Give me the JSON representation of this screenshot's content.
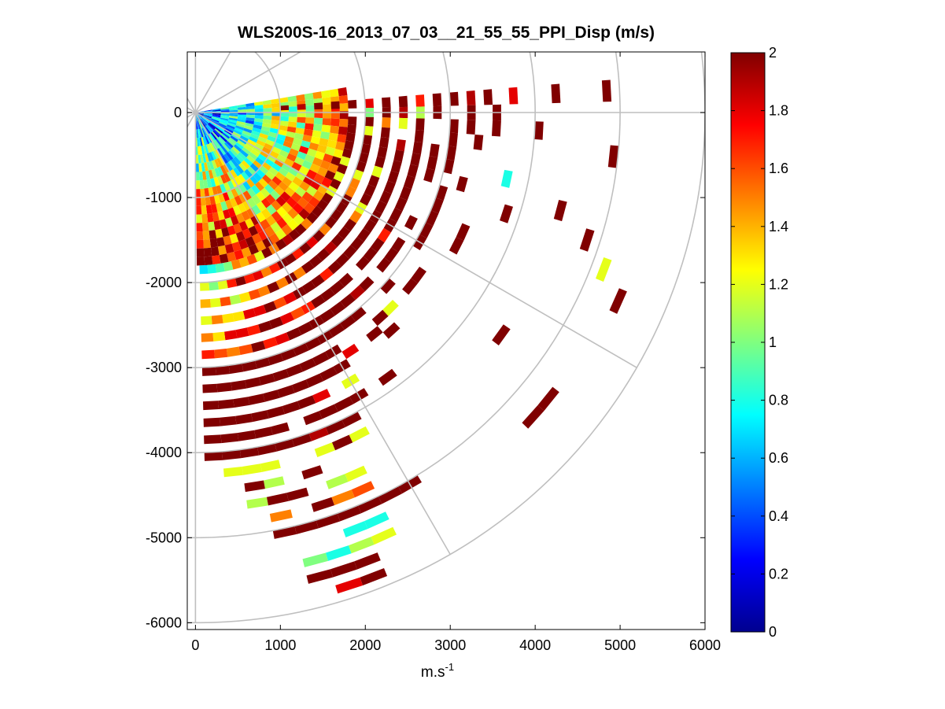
{
  "chart_data": {
    "type": "heatmap",
    "title": "WLS200S-16_2013_07_03__21_55_55_PPI_Disp (m/s)",
    "xlabel": "m.s",
    "xlabel_superscript": "-1",
    "ylabel": "",
    "xlim": [
      -50,
      6000
    ],
    "ylim": [
      -6100,
      650
    ],
    "xticks": [
      0,
      1000,
      2000,
      3000,
      4000,
      5000,
      6000
    ],
    "xtick_labels": [
      "0",
      "1000",
      "2000",
      "3000",
      "4000",
      "5000",
      "6000"
    ],
    "yticks": [
      0,
      -1000,
      -2000,
      -3000,
      -4000,
      -5000,
      -6000
    ],
    "ytick_labels": [
      "0",
      "-1000",
      "-2000",
      "-3000",
      "-4000",
      "-5000",
      "-6000"
    ],
    "polar_grid": {
      "origin": [
        0,
        0
      ],
      "ring_radii": [
        1000,
        2000,
        3000,
        4000,
        5000,
        6000
      ],
      "spoke_angles_deg": [
        0,
        30,
        60,
        90,
        120,
        150
      ]
    },
    "colorbar": {
      "colormap": "jet",
      "min": 0,
      "max": 2,
      "ticks": [
        0,
        0.2,
        0.4,
        0.6,
        0.8,
        1,
        1.2,
        1.4,
        1.6,
        1.8,
        2
      ],
      "tick_labels": [
        "0",
        "0.2",
        "0.4",
        "0.6",
        "0.8",
        "1",
        "1.2",
        "1.4",
        "1.6",
        "1.8",
        "2"
      ]
    },
    "scan": {
      "azimuth_start_deg": 8,
      "azimuth_end_deg": -88,
      "beam_width_deg": 3,
      "gate_length_m": 100
    },
    "cells": [
      [
        3,
        1050,
        2.0
      ],
      [
        3,
        1250,
        1.9
      ],
      [
        3,
        1450,
        2.0
      ],
      [
        3,
        1650,
        2.0
      ],
      [
        3,
        1850,
        2.0
      ],
      [
        3,
        2050,
        1.8
      ],
      [
        3,
        2250,
        2.0
      ],
      [
        3,
        2450,
        2.0
      ],
      [
        3,
        2650,
        1.7
      ],
      [
        3,
        2850,
        2.0
      ],
      [
        3,
        3050,
        2.0
      ],
      [
        3,
        3250,
        1.9
      ],
      [
        3,
        3450,
        2.0
      ],
      [
        3,
        3750,
        1.8
      ],
      [
        3,
        4250,
        2.0
      ],
      [
        3,
        4850,
        2.0
      ],
      [
        0,
        2050,
        1.0
      ],
      [
        0,
        2250,
        2.0
      ],
      [
        0,
        2450,
        1.9
      ],
      [
        0,
        2650,
        1.1
      ],
      [
        0,
        2850,
        2.0
      ],
      [
        0,
        3250,
        2.0
      ],
      [
        0,
        3550,
        2.0
      ],
      [
        -3,
        1850,
        2.0
      ],
      [
        -3,
        2050,
        2.0
      ],
      [
        -3,
        2250,
        1.5
      ],
      [
        -3,
        2450,
        1.2
      ],
      [
        -3,
        2650,
        2.0
      ],
      [
        -3,
        3050,
        2.0
      ],
      [
        -3,
        3250,
        2.0
      ],
      [
        -3,
        3550,
        2.0
      ],
      [
        -3,
        4050,
        2.0
      ],
      [
        -6,
        1850,
        2.0
      ],
      [
        -6,
        2050,
        1.2
      ],
      [
        -6,
        2250,
        2.0
      ],
      [
        -6,
        2650,
        2.0
      ],
      [
        -6,
        3050,
        2.0
      ],
      [
        -6,
        3350,
        2.0
      ],
      [
        -6,
        4950,
        2.0
      ],
      [
        -9,
        1850,
        2.0
      ],
      [
        -9,
        2050,
        2.0
      ],
      [
        -9,
        2250,
        2.0
      ],
      [
        -9,
        2450,
        1.9
      ],
      [
        -9,
        2650,
        2.0
      ],
      [
        -9,
        2850,
        2.0
      ],
      [
        -9,
        3050,
        2.0
      ],
      [
        -12,
        1850,
        2.0
      ],
      [
        -12,
        2050,
        2.0
      ],
      [
        -12,
        2250,
        2.0
      ],
      [
        -12,
        2450,
        2.0
      ],
      [
        -12,
        2650,
        2.0
      ],
      [
        -12,
        2850,
        2.0
      ],
      [
        -12,
        3050,
        2.0
      ],
      [
        -12,
        3750,
        0.8
      ],
      [
        -15,
        1850,
        2.0
      ],
      [
        -15,
        2050,
        2.0
      ],
      [
        -15,
        2250,
        2.0
      ],
      [
        -15,
        2450,
        2.0
      ],
      [
        -15,
        2650,
        2.0
      ],
      [
        -15,
        2850,
        2.0
      ],
      [
        -15,
        3250,
        2.0
      ],
      [
        -15,
        4450,
        2.0
      ],
      [
        -18,
        1850,
        1.2
      ],
      [
        -18,
        2050,
        2.0
      ],
      [
        -18,
        2250,
        1.2
      ],
      [
        -18,
        2450,
        2.0
      ],
      [
        -18,
        2650,
        2.0
      ],
      [
        -18,
        3050,
        2.0
      ],
      [
        -18,
        3850,
        2.0
      ],
      [
        -18,
        4850,
        2.0
      ],
      [
        -21,
        1850,
        2.0
      ],
      [
        -21,
        2050,
        1.2
      ],
      [
        -21,
        2250,
        2.0
      ],
      [
        -21,
        2450,
        2.0
      ],
      [
        -21,
        2650,
        2.0
      ],
      [
        -21,
        3050,
        2.0
      ],
      [
        -21,
        5150,
        1.2
      ],
      [
        -24,
        1850,
        1.2
      ],
      [
        -24,
        2050,
        1.5
      ],
      [
        -24,
        2250,
        2.0
      ],
      [
        -24,
        2450,
        2.0
      ],
      [
        -24,
        2650,
        2.0
      ],
      [
        -24,
        3050,
        2.0
      ],
      [
        -24,
        3450,
        2.0
      ],
      [
        -24,
        5450,
        2.0
      ],
      [
        -27,
        1850,
        2.0
      ],
      [
        -27,
        2050,
        1.5
      ],
      [
        -27,
        2250,
        2.0
      ],
      [
        -27,
        2450,
        2.0
      ],
      [
        -27,
        2650,
        2.0
      ],
      [
        -27,
        2850,
        2.0
      ],
      [
        -27,
        3050,
        2.0
      ],
      [
        -27,
        3450,
        2.0
      ],
      [
        -30,
        1850,
        1.2
      ],
      [
        -30,
        2050,
        2.0
      ],
      [
        -30,
        2250,
        1.2
      ],
      [
        -30,
        2450,
        2.0
      ],
      [
        -30,
        2650,
        2.0
      ],
      [
        -30,
        3050,
        2.0
      ],
      [
        -33,
        1850,
        2.0
      ],
      [
        -33,
        2050,
        2.0
      ],
      [
        -33,
        2250,
        1.5
      ],
      [
        -33,
        2450,
        2.0
      ],
      [
        -33,
        2650,
        1.7
      ],
      [
        -33,
        2850,
        2.0
      ],
      [
        -36,
        1850,
        2.0
      ],
      [
        -36,
        2050,
        2.0
      ],
      [
        -36,
        2250,
        2.0
      ],
      [
        -36,
        2450,
        2.0
      ],
      [
        -36,
        2650,
        2.0
      ],
      [
        -36,
        2850,
        2.0
      ],
      [
        -36,
        3250,
        2.0
      ],
      [
        -36,
        4450,
        2.0
      ],
      [
        -39,
        1850,
        2.0
      ],
      [
        -39,
        2050,
        2.0
      ],
      [
        -39,
        2250,
        2.0
      ],
      [
        -39,
        2450,
        2.0
      ],
      [
        -39,
        2650,
        2.0
      ],
      [
        -39,
        2850,
        2.0
      ],
      [
        -39,
        3250,
        2.0
      ],
      [
        -39,
        5350,
        2.0
      ],
      [
        -42,
        1850,
        2.0
      ],
      [
        -42,
        2050,
        1.5
      ],
      [
        -42,
        2250,
        2.0
      ],
      [
        -42,
        2450,
        2.0
      ],
      [
        -42,
        2650,
        2.0
      ],
      [
        -42,
        3050,
        2.0
      ],
      [
        -42,
        5350,
        2.0
      ],
      [
        -45,
        1850,
        1.5
      ],
      [
        -45,
        2050,
        2.0
      ],
      [
        -45,
        2250,
        1.9
      ],
      [
        -45,
        2450,
        2.0
      ],
      [
        -45,
        2850,
        2.0
      ],
      [
        -45,
        3250,
        1.2
      ],
      [
        -48,
        1850,
        2.0
      ],
      [
        -48,
        2050,
        1.8
      ],
      [
        -48,
        2250,
        2.0
      ],
      [
        -48,
        2450,
        2.0
      ],
      [
        -48,
        2650,
        2.0
      ],
      [
        -48,
        2850,
        1.9
      ],
      [
        -48,
        3250,
        2.0
      ],
      [
        -48,
        3450,
        2.0
      ],
      [
        -51,
        1850,
        2.0
      ],
      [
        -51,
        2050,
        2.0
      ],
      [
        -51,
        2250,
        2.0
      ],
      [
        -51,
        2450,
        1.7
      ],
      [
        -51,
        2650,
        2.0
      ],
      [
        -51,
        2850,
        2.0
      ],
      [
        -51,
        3050,
        2.0
      ],
      [
        -51,
        3350,
        2.0
      ],
      [
        -54,
        1850,
        1.9
      ],
      [
        -54,
        2050,
        1.7
      ],
      [
        -54,
        2250,
        2.0
      ],
      [
        -54,
        2450,
        2.0
      ],
      [
        -54,
        2650,
        2.0
      ],
      [
        -54,
        2850,
        2.0
      ],
      [
        -54,
        3050,
        2.0
      ],
      [
        -54,
        3850,
        2.0
      ],
      [
        -57,
        1850,
        2.0
      ],
      [
        -57,
        2050,
        2.0
      ],
      [
        -57,
        2250,
        1.5
      ],
      [
        -57,
        2450,
        2.0
      ],
      [
        -57,
        2650,
        2.0
      ],
      [
        -57,
        2850,
        2.0
      ],
      [
        -57,
        3050,
        2.0
      ],
      [
        -57,
        3350,
        1.8
      ],
      [
        -60,
        1850,
        1.5
      ],
      [
        -60,
        2050,
        2.0
      ],
      [
        -60,
        2250,
        2.0
      ],
      [
        -60,
        2450,
        2.0
      ],
      [
        -60,
        2650,
        1.7
      ],
      [
        -60,
        2850,
        2.0
      ],
      [
        -60,
        3050,
        2.0
      ],
      [
        -60,
        3250,
        2.0
      ],
      [
        -60,
        3450,
        2.0
      ],
      [
        -60,
        3650,
        1.2
      ],
      [
        -60,
        3850,
        2.0
      ],
      [
        -60,
        5050,
        2.0
      ],
      [
        -63,
        1850,
        2.0
      ],
      [
        -63,
        2050,
        1.7
      ],
      [
        -63,
        2250,
        1.5
      ],
      [
        -63,
        2450,
        1.8
      ],
      [
        -63,
        2650,
        1.6
      ],
      [
        -63,
        2850,
        2.0
      ],
      [
        -63,
        3050,
        2.0
      ],
      [
        -63,
        3250,
        2.0
      ],
      [
        -63,
        3450,
        2.0
      ],
      [
        -63,
        3850,
        2.0
      ],
      [
        -63,
        4050,
        2.0
      ],
      [
        -63,
        4250,
        1.2
      ],
      [
        -63,
        5050,
        2.0
      ],
      [
        -66,
        1850,
        1.2
      ],
      [
        -66,
        2050,
        1.5
      ],
      [
        -66,
        2250,
        2.0
      ],
      [
        -66,
        2450,
        1.6
      ],
      [
        -66,
        2650,
        1.8
      ],
      [
        -66,
        2850,
        2.0
      ],
      [
        -66,
        3050,
        2.0
      ],
      [
        -66,
        3250,
        2.0
      ],
      [
        -66,
        3450,
        2.0
      ],
      [
        -66,
        3650,
        1.8
      ],
      [
        -66,
        3850,
        2.0
      ],
      [
        -66,
        4050,
        2.0
      ],
      [
        -66,
        4250,
        2.0
      ],
      [
        -66,
        4650,
        1.2
      ],
      [
        -66,
        4850,
        1.6
      ],
      [
        -66,
        5050,
        2.0
      ],
      [
        -66,
        5250,
        0.8
      ],
      [
        -66,
        5450,
        1.2
      ],
      [
        -69,
        1850,
        1.6
      ],
      [
        -69,
        2050,
        1.8
      ],
      [
        -69,
        2250,
        1.5
      ],
      [
        -69,
        2450,
        2.0
      ],
      [
        -69,
        2650,
        2.0
      ],
      [
        -69,
        2850,
        1.8
      ],
      [
        -69,
        3050,
        2.0
      ],
      [
        -69,
        3250,
        2.0
      ],
      [
        -69,
        3450,
        2.0
      ],
      [
        -69,
        3650,
        2.0
      ],
      [
        -69,
        3850,
        2.0
      ],
      [
        -69,
        4050,
        1.9
      ],
      [
        -69,
        4250,
        1.2
      ],
      [
        -69,
        4650,
        1.1
      ],
      [
        -69,
        4850,
        1.5
      ],
      [
        -69,
        5050,
        2.0
      ],
      [
        -69,
        5250,
        0.8
      ],
      [
        -69,
        5450,
        1.1
      ],
      [
        -69,
        5650,
        2.0
      ],
      [
        -69,
        5850,
        2.0
      ],
      [
        -72,
        1850,
        1.4
      ],
      [
        -72,
        2050,
        1.7
      ],
      [
        -72,
        2250,
        1.6
      ],
      [
        -72,
        2450,
        1.8
      ],
      [
        -72,
        2650,
        2.0
      ],
      [
        -72,
        2850,
        1.7
      ],
      [
        -72,
        3050,
        2.0
      ],
      [
        -72,
        3250,
        2.0
      ],
      [
        -72,
        3450,
        2.0
      ],
      [
        -72,
        3650,
        2.0
      ],
      [
        -72,
        4050,
        2.0
      ],
      [
        -72,
        4450,
        2.0
      ],
      [
        -72,
        4850,
        2.0
      ],
      [
        -72,
        5050,
        2.0
      ],
      [
        -72,
        5450,
        0.8
      ],
      [
        -72,
        5650,
        2.0
      ],
      [
        -72,
        5850,
        1.8
      ],
      [
        -75,
        1850,
        1.5
      ],
      [
        -75,
        2050,
        2.0
      ],
      [
        -75,
        2250,
        1.3
      ],
      [
        -75,
        2450,
        1.8
      ],
      [
        -75,
        2650,
        1.7
      ],
      [
        -75,
        2850,
        2.0
      ],
      [
        -75,
        3050,
        2.0
      ],
      [
        -75,
        3250,
        2.0
      ],
      [
        -75,
        3450,
        2.0
      ],
      [
        -75,
        3650,
        2.0
      ],
      [
        -75,
        3850,
        2.0
      ],
      [
        -75,
        4050,
        2.0
      ],
      [
        -75,
        4650,
        2.0
      ],
      [
        -75,
        5050,
        2.0
      ],
      [
        -75,
        5450,
        1.0
      ],
      [
        -75,
        5650,
        2.0
      ],
      [
        -78,
        1850,
        1.0
      ],
      [
        -78,
        2050,
        1.7
      ],
      [
        -78,
        2250,
        1.1
      ],
      [
        -78,
        2450,
        1.3
      ],
      [
        -78,
        2650,
        1.8
      ],
      [
        -78,
        2850,
        1.6
      ],
      [
        -78,
        3050,
        2.0
      ],
      [
        -78,
        3250,
        2.0
      ],
      [
        -78,
        3450,
        2.0
      ],
      [
        -78,
        3650,
        2.0
      ],
      [
        -78,
        3850,
        2.0
      ],
      [
        -78,
        4050,
        2.0
      ],
      [
        -78,
        4250,
        1.2
      ],
      [
        -78,
        4450,
        1.1
      ],
      [
        -78,
        4650,
        2.0
      ],
      [
        -78,
        4850,
        1.5
      ],
      [
        -78,
        5050,
        2.0
      ],
      [
        -81,
        1850,
        0.9
      ],
      [
        -81,
        2050,
        1.2
      ],
      [
        -81,
        2250,
        1.6
      ],
      [
        -81,
        2450,
        1.3
      ],
      [
        -81,
        2650,
        1.8
      ],
      [
        -81,
        2850,
        1.5
      ],
      [
        -81,
        3050,
        2.0
      ],
      [
        -81,
        3250,
        2.0
      ],
      [
        -81,
        3450,
        2.0
      ],
      [
        -81,
        3650,
        2.0
      ],
      [
        -81,
        3850,
        2.0
      ],
      [
        -81,
        4050,
        2.0
      ],
      [
        -81,
        4250,
        1.2
      ],
      [
        -81,
        4450,
        2.0
      ],
      [
        -81,
        4650,
        1.1
      ],
      [
        -84,
        1850,
        0.8
      ],
      [
        -84,
        2050,
        1.0
      ],
      [
        -84,
        2250,
        1.2
      ],
      [
        -84,
        2450,
        1.5
      ],
      [
        -84,
        2650,
        1.3
      ],
      [
        -84,
        2850,
        1.6
      ],
      [
        -84,
        3050,
        2.0
      ],
      [
        -84,
        3250,
        2.0
      ],
      [
        -84,
        3450,
        2.0
      ],
      [
        -84,
        3650,
        2.0
      ],
      [
        -84,
        3850,
        2.0
      ],
      [
        -84,
        4050,
        2.0
      ],
      [
        -84,
        4250,
        1.2
      ],
      [
        -87,
        1850,
        0.7
      ],
      [
        -87,
        2050,
        1.2
      ],
      [
        -87,
        2250,
        1.4
      ],
      [
        -87,
        2450,
        1.2
      ],
      [
        -87,
        2650,
        1.5
      ],
      [
        -87,
        2850,
        1.7
      ],
      [
        -87,
        3050,
        2.0
      ],
      [
        -87,
        3250,
        2.0
      ],
      [
        -87,
        3450,
        2.0
      ],
      [
        -87,
        3650,
        2.0
      ],
      [
        -87,
        3850,
        2.0
      ],
      [
        -87,
        4050,
        2.0
      ]
    ]
  }
}
